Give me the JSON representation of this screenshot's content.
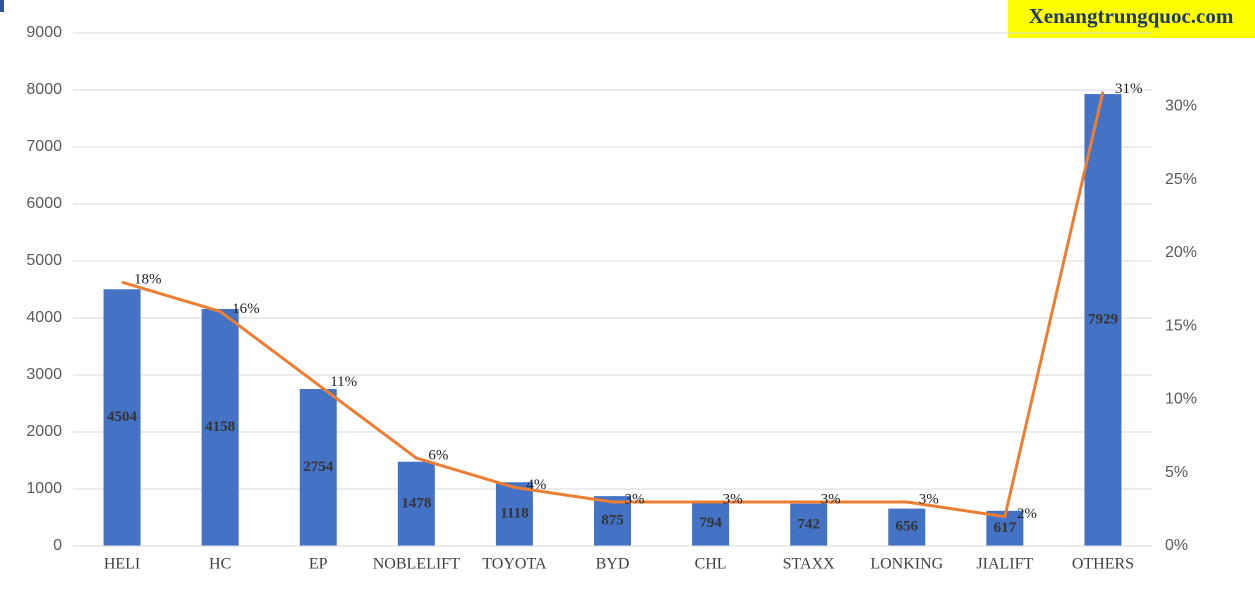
{
  "chart_data": {
    "type": "bar_line",
    "watermark": "Xenangtrungquoc.com",
    "categories": [
      "HELI",
      "HC",
      "EP",
      "NOBLELIFT",
      "TOYOTA",
      "BYD",
      "CHL",
      "STAXX",
      "LONKING",
      "JIALIFT",
      "OTHERS"
    ],
    "series": [
      {
        "type": "bar",
        "color": "#4472c4",
        "values": [
          4504,
          4158,
          2754,
          1478,
          1118,
          875,
          794,
          742,
          656,
          617,
          7929
        ]
      },
      {
        "type": "line",
        "color": "#ed7d31",
        "axis": "y2",
        "values": [
          18,
          16,
          11,
          6,
          4,
          3,
          3,
          3,
          3,
          2,
          31
        ],
        "value_labels": [
          "18%",
          "16%",
          "11%",
          "6%",
          "4%",
          "3%",
          "3%",
          "3%",
          "3%",
          "2%",
          "31%"
        ]
      }
    ],
    "ylim": [
      0,
      9000
    ],
    "yticks": [
      0,
      1000,
      2000,
      3000,
      4000,
      5000,
      6000,
      7000,
      8000,
      9000
    ],
    "y2lim": [
      0,
      35
    ],
    "y2ticks": [
      {
        "value": 0,
        "label": "0%"
      },
      {
        "value": 5,
        "label": "5%"
      },
      {
        "value": 10,
        "label": "10%"
      },
      {
        "value": 15,
        "label": "15%"
      },
      {
        "value": 20,
        "label": "20%"
      },
      {
        "value": 25,
        "label": "25%"
      },
      {
        "value": 30,
        "label": "30%"
      }
    ],
    "grid": true
  }
}
